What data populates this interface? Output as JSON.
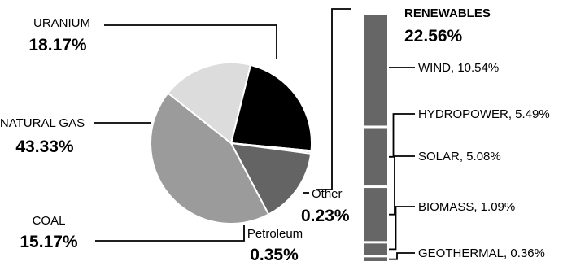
{
  "chart_data": {
    "type": "pie",
    "title": "",
    "slices": [
      {
        "label": "RENEWABLES",
        "value": 22.56,
        "value_label": "22.56%",
        "color": "#000000"
      },
      {
        "label": "Other",
        "value": 0.23,
        "value_label": "0.23%",
        "color": "#ffffff"
      },
      {
        "label": "Petroleum",
        "value": 0.35,
        "value_label": "0.35%",
        "color": "#3a3a3a"
      },
      {
        "label": "COAL",
        "value": 15.17,
        "value_label": "15.17%",
        "color": "#646464"
      },
      {
        "label": "NATURAL GAS",
        "value": 43.33,
        "value_label": "43.33%",
        "color": "#9b9b9b"
      },
      {
        "label": "URANIUM",
        "value": 18.17,
        "value_label": "18.17%",
        "color": "#dcdcdc"
      }
    ],
    "breakdown": {
      "label": "RENEWABLES",
      "total_label": "22.56%",
      "color": "#666666",
      "items": [
        {
          "label": "WIND, 10.54%",
          "value": 10.54
        },
        {
          "label": "HYDROPOWER, 5.49%",
          "value": 5.49
        },
        {
          "label": "SOLAR, 5.08%",
          "value": 5.08
        },
        {
          "label": "BIOMASS, 1.09%",
          "value": 1.09
        },
        {
          "label": "GEOTHERMAL,  0.36%",
          "value": 0.36
        }
      ]
    }
  }
}
